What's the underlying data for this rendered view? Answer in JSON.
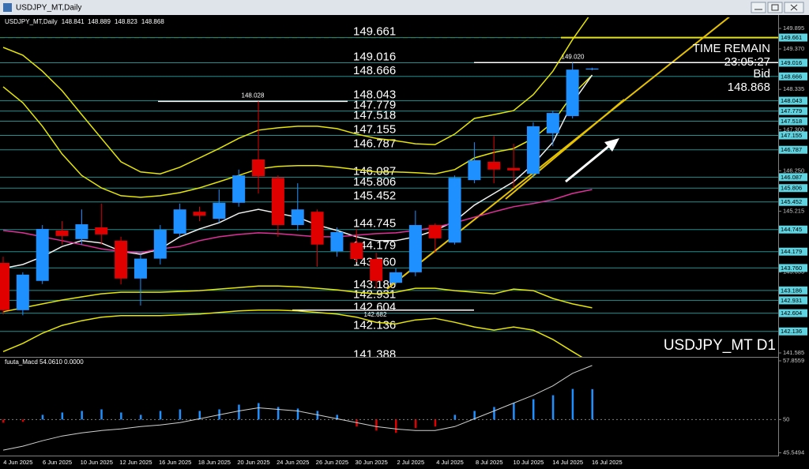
{
  "chart_data": {
    "type": "candlestick",
    "title": "USDJPY_MT,Daily",
    "categories": [
      null,
      "4 Jun 2025",
      null,
      "6 Jun 2025",
      null,
      "10 Jun 2025",
      null,
      "12 Jun 2025",
      null,
      "16 Jun 2025",
      null,
      "18 Jun 2025",
      null,
      "20 Jun 2025",
      null,
      "24 Jun 2025",
      null,
      "26 Jun 2025",
      null,
      "30 Jun 2025",
      null,
      "2 Jul 2025",
      null,
      "4 Jul 2025",
      null,
      "8 Jul 2025",
      null,
      "10 Jul 2025",
      null,
      "14 Jul 2025",
      null,
      "16 Jul 2025"
    ],
    "open": [
      143.89,
      142.68,
      143.43,
      144.72,
      144.5,
      144.8,
      144.46,
      143.49,
      144.0,
      144.64,
      145.2,
      145.02,
      145.43,
      146.54,
      146.07,
      144.86,
      145.2,
      144.19,
      144.41,
      143.99,
      143.38,
      143.65,
      144.86,
      144.41,
      146.01,
      146.48,
      146.32,
      146.17,
      147.21,
      147.65,
      148.841,
      null
    ],
    "high": [
      144.05,
      143.65,
      144.86,
      144.96,
      145.26,
      145.41,
      144.56,
      144.11,
      144.86,
      145.41,
      145.33,
      145.77,
      146.28,
      148.028,
      146.13,
      145.93,
      145.26,
      144.8,
      144.76,
      144.15,
      143.75,
      145.23,
      144.9,
      146.13,
      146.98,
      147.14,
      146.94,
      147.49,
      147.79,
      149.02,
      148.889,
      null
    ],
    "low": [
      142.57,
      142.55,
      143.35,
      144.36,
      144.36,
      144.36,
      143.34,
      142.8,
      143.85,
      144.56,
      144.96,
      144.92,
      145.33,
      145.67,
      144.56,
      144.72,
      143.79,
      144.05,
      143.91,
      143.24,
      143.34,
      143.55,
      144.15,
      144.36,
      145.93,
      145.93,
      145.81,
      146.07,
      146.88,
      147.59,
      148.823,
      null
    ],
    "close": [
      142.68,
      143.59,
      144.76,
      144.58,
      144.88,
      144.62,
      143.49,
      144.0,
      144.74,
      145.26,
      145.1,
      145.43,
      146.13,
      146.11,
      144.86,
      145.26,
      144.36,
      144.68,
      143.99,
      143.43,
      143.65,
      144.86,
      144.52,
      146.07,
      146.52,
      146.28,
      146.26,
      147.39,
      147.73,
      148.84,
      148.868,
      null
    ],
    "up_color": "#1e90ff",
    "down_color": "#e00000",
    "ylim": [
      141.484,
      150.178
    ],
    "yticks": [
      149.895,
      {
        "value": 149.37,
        "label": "149.370"
      },
      148.335,
      {
        "value": 147.3,
        "label": "147.300"
      },
      {
        "value": 146.25,
        "label": "146.250"
      },
      145.215,
      143.655,
      141.585
    ],
    "levels": [
      149.661,
      149.016,
      148.666,
      148.043,
      147.779,
      147.518,
      147.155,
      146.787,
      146.087,
      145.806,
      145.452,
      144.745,
      144.179,
      {
        "value": 143.76,
        "label": "143.760"
      },
      143.186,
      142.931,
      142.604,
      142.136,
      141.388
    ],
    "level_color": "#1f8f8f",
    "price_marks": [
      148.028,
      {
        "value": 149.02,
        "label": "149.020"
      },
      142.682
    ],
    "lines": [
      {
        "color": "#e6e600",
        "values": [
          149.41,
          149.21,
          148.8,
          148.3,
          147.69,
          147.08,
          146.48,
          146.22,
          146.17,
          146.34,
          146.58,
          146.82,
          147.08,
          147.29,
          147.35,
          147.39,
          147.39,
          147.33,
          147.19,
          147.08,
          147.02,
          146.94,
          146.92,
          147.19,
          147.59,
          147.69,
          147.79,
          148.2,
          148.8,
          149.61,
          150.32,
          null
        ]
      },
      {
        "color": "#e6e600",
        "values": [
          148.4,
          147.99,
          147.39,
          146.68,
          146.13,
          145.81,
          145.61,
          145.57,
          145.61,
          145.69,
          145.81,
          145.97,
          146.13,
          146.3,
          146.36,
          146.38,
          146.38,
          146.34,
          146.28,
          146.22,
          146.22,
          146.2,
          146.17,
          146.28,
          146.58,
          146.72,
          146.82,
          147.08,
          147.49,
          148.2,
          148.7,
          null
        ]
      },
      {
        "color": "#e6e600",
        "values": [
          142.64,
          142.74,
          142.84,
          142.94,
          143.02,
          143.1,
          143.14,
          143.14,
          143.14,
          143.16,
          143.18,
          143.22,
          143.26,
          143.3,
          143.3,
          143.28,
          143.24,
          143.2,
          143.14,
          143.1,
          143.14,
          143.24,
          143.24,
          143.18,
          143.14,
          143.1,
          143.22,
          143.18,
          142.98,
          142.84,
          142.74,
          null
        ]
      },
      {
        "color": "#e6e600",
        "values": [
          141.62,
          141.83,
          142.09,
          142.29,
          142.41,
          142.5,
          142.54,
          142.54,
          142.54,
          142.56,
          142.58,
          142.62,
          142.66,
          142.68,
          142.68,
          142.66,
          142.62,
          142.58,
          142.5,
          142.37,
          142.33,
          142.43,
          142.47,
          142.37,
          142.25,
          142.17,
          142.25,
          142.17,
          141.93,
          141.62,
          141.32,
          null
        ]
      },
      {
        "color": "#f0f0f0",
        "values": [
          143.75,
          143.85,
          144.05,
          144.31,
          144.46,
          144.4,
          144.19,
          144.11,
          144.25,
          144.56,
          144.76,
          144.92,
          145.16,
          145.26,
          145.16,
          145.06,
          144.86,
          144.72,
          144.56,
          144.46,
          144.46,
          144.56,
          144.72,
          144.96,
          145.37,
          145.67,
          145.97,
          146.42,
          146.98,
          147.99,
          148.7,
          null
        ]
      },
      {
        "color": "#e0309a",
        "values": [
          144.72,
          144.66,
          144.56,
          144.46,
          144.36,
          144.25,
          144.19,
          144.15,
          144.25,
          144.31,
          144.46,
          144.56,
          144.62,
          144.66,
          144.64,
          144.6,
          144.56,
          144.56,
          144.6,
          144.64,
          144.66,
          144.72,
          144.8,
          144.92,
          145.06,
          145.2,
          145.33,
          145.41,
          145.51,
          145.67,
          145.77,
          null
        ]
      }
    ],
    "time_remain_label": "TIME REMAIN",
    "time_remain": "23:05:27",
    "bid_label": "Bid",
    "symbol_label": "USDJPY_MT D1",
    "macd": {
      "label": "fuuta_Macd 54.0610 0.0000",
      "ylim": [
        45.18,
        58.275
      ],
      "yticks": [
        57.8559,
        50,
        45.5494
      ],
      "up_color": "#1e90ff",
      "down_color": "#e00000",
      "signal_color": "#d0d0d0",
      "values": [
        49.58,
        49.69,
        50.63,
        50.94,
        51.15,
        51.36,
        50.94,
        50.63,
        51.15,
        51.36,
        51.15,
        51.36,
        51.99,
        52.2,
        51.68,
        51.47,
        51.15,
        50.63,
        49.06,
        48.53,
        48.22,
        48.85,
        49.06,
        50.63,
        51.15,
        51.68,
        52.2,
        52.72,
        53.25,
        54.09,
        54.061,
        null
      ],
      "signal": [
        45.91,
        46.44,
        47.17,
        47.8,
        48.22,
        48.53,
        48.74,
        49.06,
        49.27,
        49.58,
        50.1,
        50.63,
        51.15,
        51.57,
        51.36,
        51.15,
        50.63,
        50.1,
        49.58,
        49.06,
        48.74,
        48.53,
        48.53,
        49.06,
        50.1,
        51.15,
        52.2,
        53.25,
        54.5,
        56.18,
        57.23,
        null
      ]
    }
  }
}
